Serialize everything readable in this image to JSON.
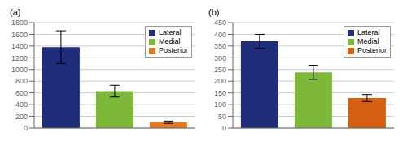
{
  "chart_data": [
    {
      "type": "bar",
      "title": "(a)",
      "categories": [
        "Lateral",
        "Medial",
        "Posterior"
      ],
      "values": [
        1380,
        630,
        100
      ],
      "errors": [
        280,
        100,
        20
      ],
      "colors": [
        "#1f2d7b",
        "#7db83a",
        "#e87820"
      ],
      "ylim": [
        0,
        1800
      ],
      "yticks": [
        0,
        200,
        400,
        600,
        800,
        1000,
        1200,
        1400,
        1600,
        1800
      ],
      "grid": true,
      "legend": "upper right",
      "tick_labels": "y"
    },
    {
      "type": "bar",
      "title": "(b)",
      "categories": [
        "Lateral",
        "Medial",
        "Posterior"
      ],
      "values": [
        370,
        238,
        128
      ],
      "errors": [
        30,
        30,
        15
      ],
      "colors": [
        "#1f2d7b",
        "#7db83a",
        "#d45f10"
      ],
      "ylim": [
        0,
        450
      ],
      "yticks": [
        0,
        50,
        100,
        150,
        200,
        250,
        300,
        350,
        400,
        450
      ],
      "grid": true,
      "legend": "upper right",
      "tick_labels": "y"
    }
  ]
}
